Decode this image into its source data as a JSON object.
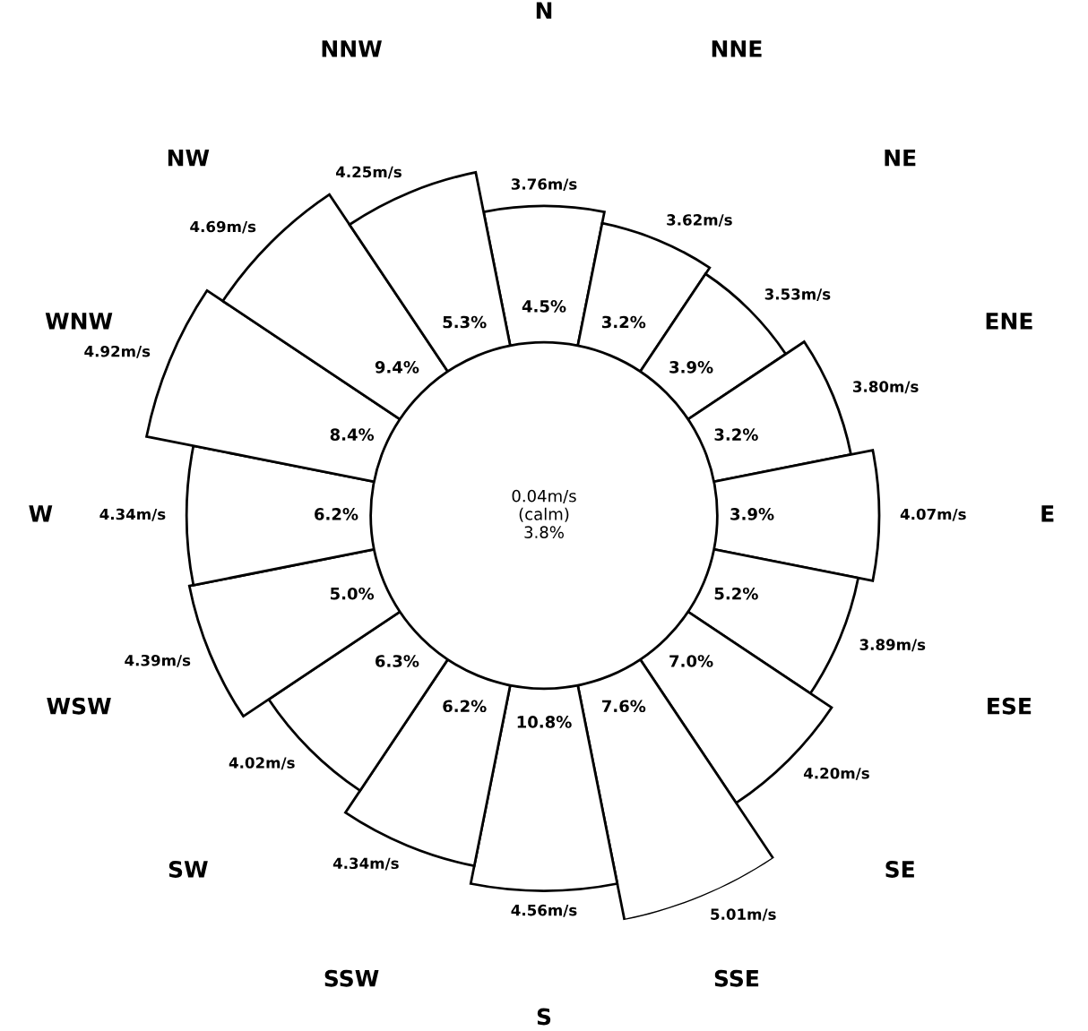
{
  "chart_data": {
    "type": "other",
    "categories": [
      "N",
      "NNE",
      "NE",
      "ENE",
      "E",
      "ESE",
      "SE",
      "SSE",
      "S",
      "SSW",
      "SW",
      "WSW",
      "W",
      "WNW",
      "NW",
      "NNW"
    ],
    "series": [
      {
        "type": "bar",
        "color": "#ffffff",
        "values": [
          3.76,
          3.62,
          3.53,
          3.8,
          4.07,
          3.89,
          4.2,
          5.01,
          4.56,
          4.34,
          4.02,
          4.39,
          4.34,
          4.92,
          4.69,
          4.25
        ],
        "value_labels": [
          "3.76m/s",
          "3.62m/s",
          "3.53m/s",
          "3.80m/s",
          "4.07m/s",
          "3.89m/s",
          "4.20m/s",
          "5.01m/s",
          "4.56m/s",
          "4.34m/s",
          "4.02m/s",
          "4.39m/s",
          "4.34m/s",
          "4.92m/s",
          "4.69m/s",
          "4.25m/s"
        ]
      },
      {
        "type": "other",
        "values": [
          4.5,
          3.2,
          3.9,
          3.2,
          3.9,
          5.2,
          7.0,
          7.6,
          10.8,
          6.2,
          6.3,
          5.0,
          6.2,
          8.4,
          9.4,
          5.3
        ],
        "value_labels": [
          "4.5%",
          "3.2%",
          "3.9%",
          "3.2%",
          "3.9%",
          "5.2%",
          "7.0%",
          "7.6%",
          "10.8%",
          "6.2%",
          "6.3%",
          "5.0%",
          "6.2%",
          "8.4%",
          "9.4%",
          "5.3%"
        ]
      }
    ],
    "annotations": [
      "0.04m/s\n(calm)\n3.8%"
    ]
  }
}
